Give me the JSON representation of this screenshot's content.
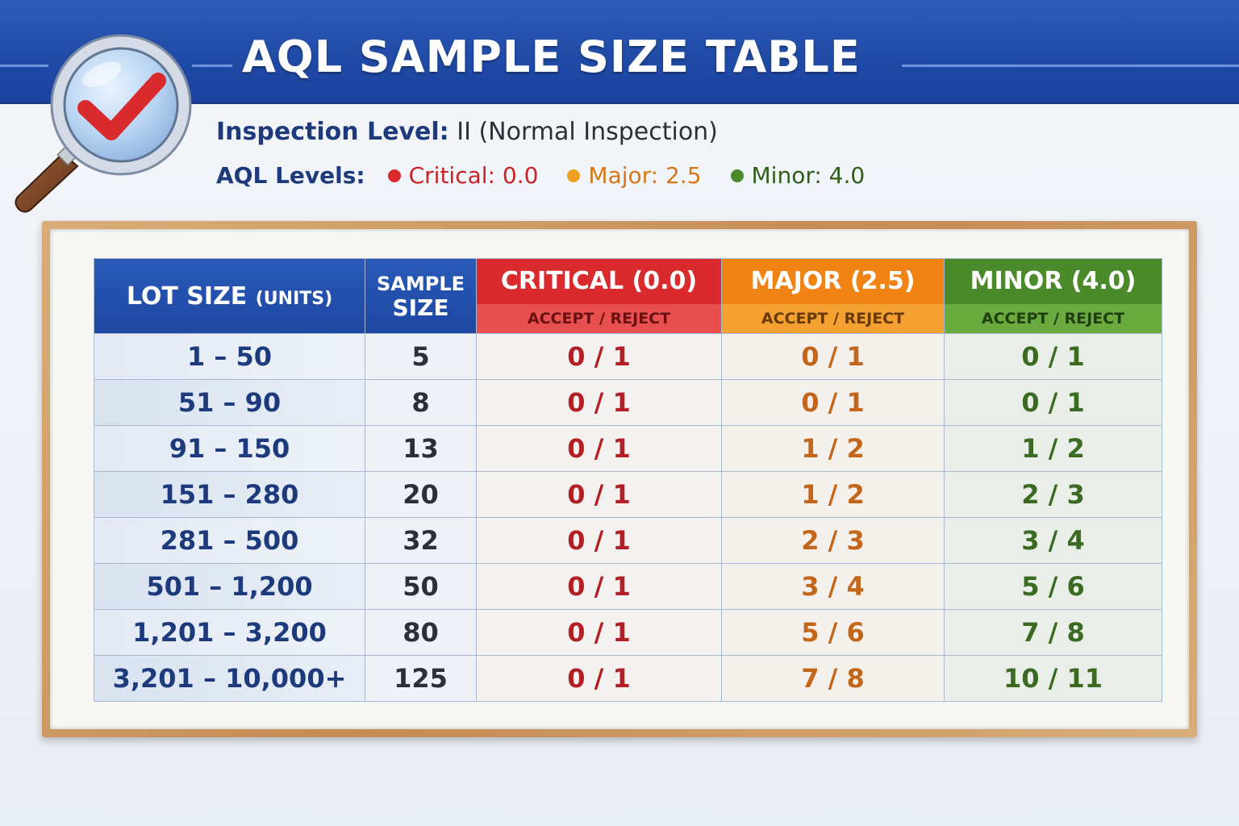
{
  "header": {
    "title": "AQL SAMPLE SIZE TABLE"
  },
  "info": {
    "inspection_label": "Inspection Level:",
    "inspection_value": "II (Normal Inspection)",
    "aql_label": "AQL Levels:",
    "levels": [
      {
        "label": "Critical: 0.0",
        "color": "#d92a2e"
      },
      {
        "label": "Major: 2.5",
        "color": "#e08214"
      },
      {
        "label": "Minor: 4.0",
        "color": "#3e7a22"
      }
    ]
  },
  "table": {
    "lot_header": "LOT SIZE",
    "lot_header_unit": "(UNITS)",
    "sample_header_line1": "SAMPLE",
    "sample_header_line2": "SIZE",
    "critical_header": "CRITICAL (0.0)",
    "major_header": "MAJOR (2.5)",
    "minor_header": "MINOR (4.0)",
    "sub_header": "ACCEPT / REJECT",
    "rows": [
      {
        "lot": "1 – 50",
        "sample": "5",
        "critical": "0 / 1",
        "major": "0 / 1",
        "minor": "0 / 1"
      },
      {
        "lot": "51 – 90",
        "sample": "8",
        "critical": "0 / 1",
        "major": "0 / 1",
        "minor": "0 / 1"
      },
      {
        "lot": "91 – 150",
        "sample": "13",
        "critical": "0 / 1",
        "major": "1 / 2",
        "minor": "1 / 2"
      },
      {
        "lot": "151 – 280",
        "sample": "20",
        "critical": "0 / 1",
        "major": "1 / 2",
        "minor": "2 / 3"
      },
      {
        "lot": "281 – 500",
        "sample": "32",
        "critical": "0 / 1",
        "major": "2 / 3",
        "minor": "3 / 4"
      },
      {
        "lot": "501 – 1,200",
        "sample": "50",
        "critical": "0 / 1",
        "major": "3 / 4",
        "minor": "5 / 6"
      },
      {
        "lot": "1,201 – 3,200",
        "sample": "80",
        "critical": "0 / 1",
        "major": "5 / 6",
        "minor": "7 / 8"
      },
      {
        "lot": "3,201 – 10,000+",
        "sample": "125",
        "critical": "0 / 1",
        "major": "7 / 8",
        "minor": "10 / 11"
      }
    ]
  },
  "icons": {
    "magnifier": "magnifying-glass-checkmark-icon"
  }
}
